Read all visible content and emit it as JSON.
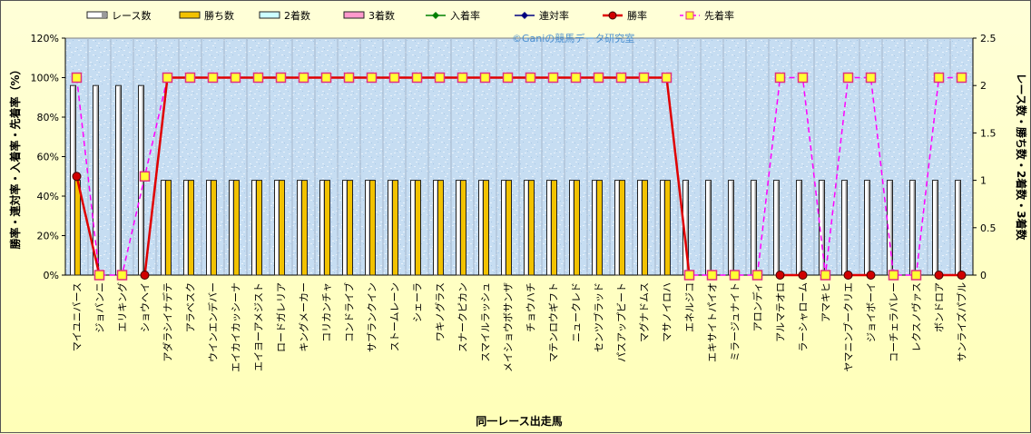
{
  "chart_data": {
    "type": "bar",
    "watermark": "©Ganiの競馬データ研究室",
    "xlabel": "同一レース出走馬",
    "ylabel_left": "勝率・連対率・入着率・先着率（%）",
    "ylabel_right": "レース数・勝ち数・2着数・3着数",
    "ylim_left": [
      0,
      120
    ],
    "ylim_right": [
      0,
      2.5
    ],
    "left_ticks": [
      "0%",
      "20%",
      "40%",
      "60%",
      "80%",
      "100%",
      "120%"
    ],
    "right_ticks": [
      "0",
      "0.5",
      "1",
      "1.5",
      "2",
      "2.5"
    ],
    "legend": [
      {
        "label": "レース数",
        "kind": "bar",
        "color": "#ffffff"
      },
      {
        "label": "勝ち数",
        "kind": "bar",
        "color": "#f2c200"
      },
      {
        "label": "2着数",
        "kind": "bar",
        "color": "#ccffff"
      },
      {
        "label": "3着数",
        "kind": "bar",
        "color": "#ff99cc"
      },
      {
        "label": "入着率",
        "kind": "line",
        "color": "#008000"
      },
      {
        "label": "連対率",
        "kind": "line",
        "color": "#000080"
      },
      {
        "label": "勝率",
        "kind": "line",
        "color": "#e00000"
      },
      {
        "label": "先着率",
        "kind": "dash",
        "color": "#ff00ff"
      }
    ],
    "categories": [
      "マイユニバース",
      "ジョバンニ",
      "エリキング",
      "ショウヘイ",
      "アダラシイナデテ",
      "アラベスク",
      "ウインエンデバー",
      "エイカイカッシーナ",
      "エイヨーアメジスト",
      "ロードガレリア",
      "キングメーカー",
      "コリカンチャ",
      "コンドライブ",
      "サブランクイン",
      "ストームレーン",
      "シェーラ",
      "ワキノグラス",
      "スナークピカン",
      "スマイルラッシュ",
      "メイショウボサンザ",
      "チョウハチ",
      "マテンロウギフト",
      "ニュークレド",
      "センツブラッド",
      "パスアップビート",
      "マグナドムス",
      "マサノイロハ",
      "エネルジコ",
      "エキサイトパイオ",
      "ミラージュナイト",
      "アロンディ",
      "アルマテオロ",
      "ラーシャローム",
      "アマキヒ",
      "ヤマニンブークリエ",
      "ジョイボーイ",
      "コーチェラバレー",
      "レクスノヴァス",
      "ボンドロア",
      "サンライズパブル"
    ],
    "series": [
      {
        "name": "レース数",
        "values": [
          2,
          2,
          2,
          2,
          1,
          1,
          1,
          1,
          1,
          1,
          1,
          1,
          1,
          1,
          1,
          1,
          1,
          1,
          1,
          1,
          1,
          1,
          1,
          1,
          1,
          1,
          1,
          1,
          1,
          1,
          1,
          1,
          1,
          1,
          1,
          1,
          1,
          1,
          1,
          1
        ]
      },
      {
        "name": "勝ち数",
        "values": [
          1,
          0,
          0,
          0,
          1,
          1,
          1,
          1,
          1,
          1,
          1,
          1,
          1,
          1,
          1,
          1,
          1,
          1,
          1,
          1,
          1,
          1,
          1,
          1,
          1,
          1,
          1,
          0,
          0,
          0,
          0,
          0,
          0,
          0,
          0,
          0,
          0,
          0,
          0,
          0
        ]
      },
      {
        "name": "2着数",
        "values": [
          0,
          0,
          0,
          0,
          0,
          0,
          0,
          0,
          0,
          0,
          0,
          0,
          0,
          0,
          0,
          0,
          0,
          0,
          0,
          0,
          0,
          0,
          0,
          0,
          0,
          0,
          0,
          0,
          0,
          0,
          0,
          0,
          0,
          0,
          0,
          0,
          0,
          0,
          0,
          0
        ]
      },
      {
        "name": "3着数",
        "values": [
          0,
          0,
          0,
          0,
          0,
          0,
          0,
          0,
          0,
          0,
          0,
          0,
          0,
          0,
          0,
          0,
          0,
          0,
          0,
          0,
          0,
          0,
          0,
          0,
          0,
          0,
          0,
          0,
          0,
          0,
          0,
          0,
          0,
          0,
          0,
          0,
          0,
          0,
          0,
          0
        ]
      },
      {
        "name": "勝率",
        "values": [
          50,
          0,
          null,
          0,
          100,
          100,
          100,
          100,
          100,
          100,
          100,
          100,
          100,
          100,
          100,
          100,
          100,
          100,
          100,
          100,
          100,
          100,
          100,
          100,
          100,
          100,
          100,
          0,
          null,
          null,
          null,
          0,
          0,
          null,
          0,
          0,
          null,
          null,
          0,
          0
        ]
      },
      {
        "name": "先着率",
        "values": [
          100,
          0,
          0,
          50,
          100,
          100,
          100,
          100,
          100,
          100,
          100,
          100,
          100,
          100,
          100,
          100,
          100,
          100,
          100,
          100,
          100,
          100,
          100,
          100,
          100,
          100,
          100,
          0,
          0,
          0,
          0,
          100,
          100,
          0,
          100,
          100,
          0,
          0,
          100,
          100
        ]
      }
    ]
  }
}
